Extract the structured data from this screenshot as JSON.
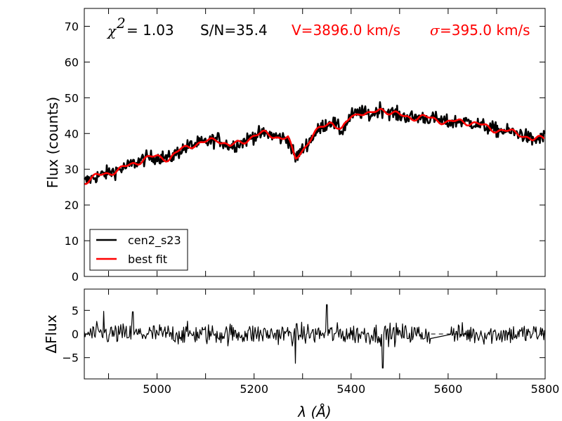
{
  "chart_data": [
    {
      "type": "line",
      "panel": "spectrum",
      "title": "",
      "xlabel": "",
      "ylabel": "Flux (counts)",
      "xlim": [
        4850,
        5800
      ],
      "ylim": [
        0,
        75
      ],
      "yticks": [
        0,
        10,
        20,
        30,
        40,
        50,
        60,
        70
      ],
      "xticks": [
        5000,
        5200,
        5400,
        5600,
        5800
      ],
      "annotations": {
        "chi_symbol": "χ",
        "chi_sup": "2",
        "chi_eq": "= 1.03",
        "sn": "S/N=35.4",
        "velocity": "V=3896.0 km/s",
        "sigma_symbol": "σ",
        "sigma_text": "=395.0 km/s"
      },
      "series": [
        {
          "name": "cen2_s23",
          "color": "#000000",
          "x": [
            4850,
            4875,
            4900,
            4925,
            4950,
            4975,
            5000,
            5025,
            5050,
            5075,
            5100,
            5125,
            5150,
            5175,
            5200,
            5225,
            5250,
            5270,
            5285,
            5300,
            5320,
            5340,
            5360,
            5380,
            5400,
            5420,
            5440,
            5460,
            5480,
            5500,
            5525,
            5550,
            5575,
            5600,
            5625,
            5650,
            5675,
            5700,
            5725,
            5750,
            5775,
            5800
          ],
          "values": [
            26.5,
            28,
            29,
            30,
            31.5,
            33,
            33.5,
            33,
            35.5,
            37,
            37.5,
            38.5,
            36.5,
            37.5,
            39.5,
            40,
            39,
            38.5,
            33,
            35.5,
            39,
            42,
            43.5,
            40.5,
            45,
            46,
            45,
            47,
            46,
            45,
            44.5,
            44.5,
            44,
            43,
            43.5,
            43,
            42,
            41,
            40.5,
            40,
            38,
            39
          ]
        },
        {
          "name": "best fit",
          "color": "#ff0000",
          "x": [
            4850,
            4875,
            4900,
            4925,
            4950,
            4975,
            5000,
            5025,
            5050,
            5075,
            5100,
            5125,
            5150,
            5175,
            5200,
            5225,
            5250,
            5270,
            5285,
            5300,
            5320,
            5340,
            5360,
            5380,
            5400,
            5420,
            5440,
            5460,
            5480,
            5500,
            5525,
            5550,
            5575,
            5600,
            5625,
            5650,
            5675,
            5700,
            5725,
            5750,
            5775,
            5800
          ],
          "values": [
            26.5,
            28,
            29,
            30,
            31.5,
            33,
            33.5,
            33,
            35.5,
            37,
            37.5,
            38.5,
            36.5,
            37.5,
            39.5,
            40,
            39,
            38.5,
            33,
            35.5,
            39,
            42,
            43.5,
            40.5,
            45,
            46,
            45,
            47,
            46,
            45,
            44.5,
            44.5,
            44,
            43,
            43.5,
            43,
            42,
            41,
            40.5,
            40,
            38,
            39
          ]
        }
      ],
      "legend": {
        "placement": "bottom-left",
        "entries": [
          "cen2_s23",
          "best fit"
        ]
      }
    },
    {
      "type": "line",
      "panel": "residuals",
      "title": "",
      "xlabel": "λ (Å)",
      "ylabel": "ΔFlux",
      "xlim": [
        4850,
        5800
      ],
      "ylim": [
        -9.5,
        9.5
      ],
      "yticks": [
        -5,
        0,
        5
      ],
      "xticks": [
        5000,
        5200,
        5400,
        5600,
        5800
      ],
      "xticklabels": [
        "5000",
        "5200",
        "5400",
        "5600",
        "5800"
      ],
      "zero_line": "dashed",
      "masked_region": [
        5565,
        5605
      ],
      "series": [
        {
          "name": "residual",
          "color": "#000000",
          "spikes": [
            [
              4890,
              4.8
            ],
            [
              4950,
              4.7
            ],
            [
              5285,
              -6.2
            ],
            [
              5350,
              6.2
            ],
            [
              5465,
              -7.2
            ],
            [
              5600,
              1.2
            ]
          ]
        }
      ]
    }
  ]
}
